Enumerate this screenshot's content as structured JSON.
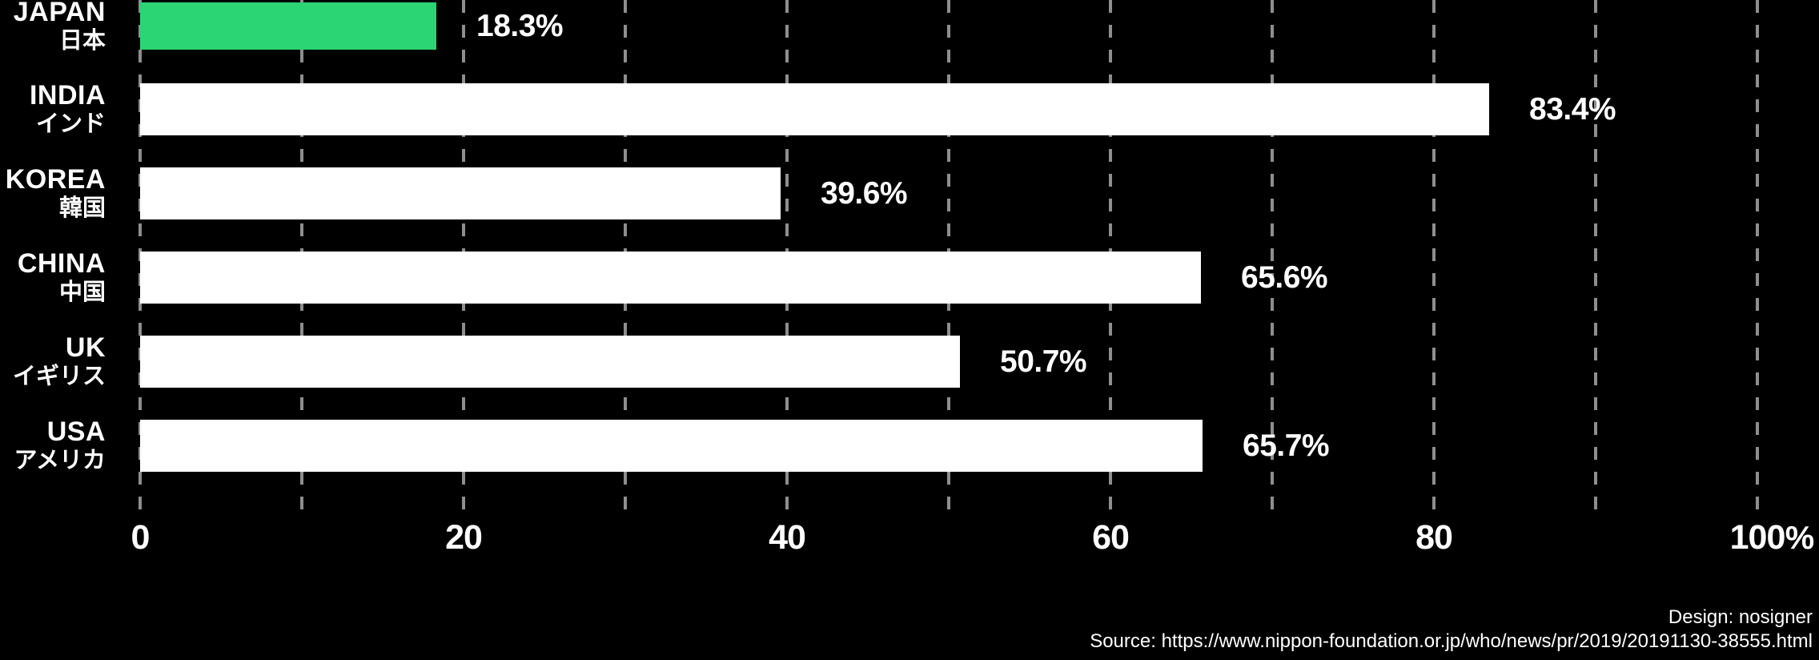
{
  "chart_data": {
    "type": "bar",
    "orientation": "horizontal",
    "categories": [
      "JAPAN 日本",
      "INDIA インド",
      "KOREA 韓国",
      "CHINA 中国",
      "UK イギリス",
      "USA アメリカ"
    ],
    "values": [
      18.3,
      83.4,
      39.6,
      65.6,
      50.7,
      65.7
    ],
    "value_labels": [
      "18.3%",
      "83.4%",
      "39.6%",
      "65.6%",
      "50.7%",
      "65.7%"
    ],
    "title": "",
    "xlabel": "%",
    "ylabel": "",
    "xlim": [
      0,
      100
    ],
    "x_ticks": [
      0,
      20,
      40,
      60,
      80,
      100
    ],
    "grid": "dashed vertical gridlines every 10 units",
    "legend": false,
    "background_color": "#000000",
    "bar_color_default": "#ffffff",
    "highlight_bar": {
      "category": "JAPAN 日本",
      "color": "#2bd573"
    },
    "gridline_color": "#8e8e8e",
    "text_color": "#ffffff"
  },
  "rows": [
    {
      "country": "JAPAN",
      "japanese": "日本",
      "value": 18.3,
      "display": "18.3%",
      "color": "#2bd573"
    },
    {
      "country": "INDIA",
      "japanese": "インド",
      "value": 83.4,
      "display": "83.4%",
      "color": "#ffffff"
    },
    {
      "country": "KOREA",
      "japanese": "韓国",
      "value": 39.6,
      "display": "39.6%",
      "color": "#ffffff"
    },
    {
      "country": "CHINA",
      "japanese": "中国",
      "value": 65.6,
      "display": "65.6%",
      "color": "#ffffff"
    },
    {
      "country": "UK",
      "japanese": "イギリス",
      "value": 50.7,
      "display": "50.7%",
      "color": "#ffffff"
    },
    {
      "country": "USA",
      "japanese": "アメリカ",
      "value": 65.7,
      "display": "65.7%",
      "color": "#ffffff"
    }
  ],
  "axis": {
    "ticks": [
      "0",
      "20",
      "40",
      "60",
      "80",
      "100"
    ],
    "tick_values": [
      0,
      20,
      40,
      60,
      80,
      100
    ],
    "unit": "%"
  },
  "credits": {
    "design": "Design: nosigner",
    "source": "Source: https://www.nippon-foundation.or.jp/who/news/pr/2019/20191130-38555.html"
  }
}
